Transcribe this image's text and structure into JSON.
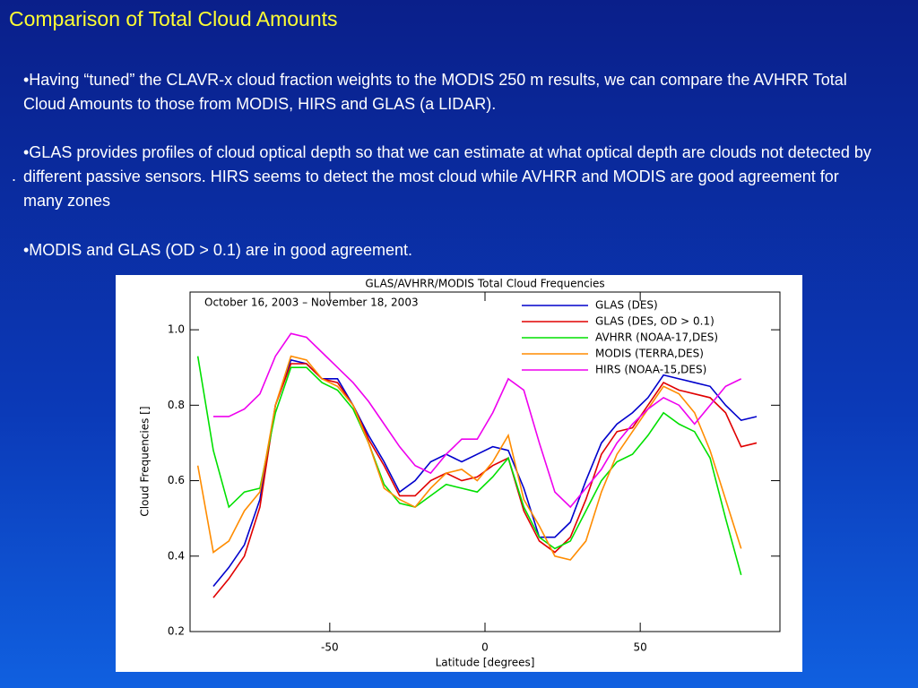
{
  "slide": {
    "title": "Comparison of Total Cloud Amounts",
    "bullets": [
      "•Having “tuned” the CLAVR-x cloud fraction weights to the MODIS 250 m results, we can compare the AVHRR Total Cloud Amounts to those from MODIS, HIRS and GLAS (a LIDAR).",
      "•GLAS provides profiles of cloud optical depth so that we can estimate at what optical depth are clouds not detected by different passive sensors.  HIRS seems to detect the most cloud while AVHRR and MODIS are good agreement for many zones",
      "•MODIS and GLAS (OD > 0.1) are in good agreement."
    ],
    "marker": "."
  },
  "chart_data": {
    "type": "line",
    "title": "GLAS/AVHRR/MODIS Total Cloud Frequencies",
    "annotation": "October 16, 2003 – November 18, 2003",
    "xlabel": "Latitude [degrees]",
    "ylabel": "Cloud Frequencies []",
    "xlim": [
      -95,
      95
    ],
    "ylim": [
      0.2,
      1.1
    ],
    "xticks": [
      -50,
      0,
      50
    ],
    "yticks": [
      0.2,
      0.4,
      0.6,
      0.8,
      {
        "value": 1,
        "label": "1.0"
      }
    ],
    "legend": "upper right",
    "x": [
      -92.5,
      -87.5,
      -82.5,
      -77.5,
      -72.5,
      -67.5,
      -62.5,
      -57.5,
      -52.5,
      -47.5,
      -42.5,
      -37.5,
      -32.5,
      -27.5,
      -22.5,
      -17.5,
      -12.5,
      -7.5,
      -2.5,
      2.5,
      7.5,
      12.5,
      17.5,
      22.5,
      27.5,
      32.5,
      37.5,
      42.5,
      47.5,
      52.5,
      57.5,
      62.5,
      67.5,
      72.5,
      77.5,
      82.5,
      87.5
    ],
    "series": [
      {
        "name": "GLAS (DES)",
        "color": "#0000cc",
        "values": [
          null,
          0.32,
          0.37,
          0.43,
          0.55,
          0.8,
          0.92,
          0.91,
          0.87,
          0.87,
          0.8,
          0.72,
          0.65,
          0.57,
          0.6,
          0.65,
          0.67,
          0.65,
          0.67,
          0.69,
          0.68,
          0.58,
          0.45,
          0.45,
          0.49,
          0.6,
          0.7,
          0.75,
          0.78,
          0.82,
          0.88,
          0.87,
          0.86,
          0.85,
          0.8,
          0.76,
          0.77
        ]
      },
      {
        "name": "GLAS (DES, OD > 0.1)",
        "color": "#e00000",
        "values": [
          null,
          0.29,
          0.34,
          0.4,
          0.53,
          0.8,
          0.91,
          0.91,
          0.87,
          0.86,
          0.8,
          0.71,
          0.64,
          0.56,
          0.56,
          0.6,
          0.62,
          0.6,
          0.61,
          0.64,
          0.66,
          0.52,
          0.44,
          0.41,
          0.45,
          0.55,
          0.67,
          0.73,
          0.74,
          0.8,
          0.86,
          0.84,
          0.83,
          0.82,
          0.78,
          0.69,
          0.7
        ]
      },
      {
        "name": "AVHRR (NOAA-17,DES)",
        "color": "#00e000",
        "values": [
          0.93,
          0.68,
          0.53,
          0.57,
          0.58,
          0.78,
          0.9,
          0.9,
          0.86,
          0.84,
          0.79,
          0.7,
          0.59,
          0.54,
          0.53,
          0.56,
          0.59,
          0.58,
          0.57,
          0.61,
          0.66,
          0.53,
          0.45,
          0.42,
          0.44,
          0.52,
          0.6,
          0.65,
          0.67,
          0.72,
          0.78,
          0.75,
          0.73,
          0.66,
          0.5,
          0.35,
          null
        ]
      },
      {
        "name": "MODIS (TERRA,DES)",
        "color": "#ff8c00",
        "values": [
          0.64,
          0.41,
          0.44,
          0.52,
          0.57,
          0.8,
          0.93,
          0.92,
          0.87,
          0.85,
          0.8,
          0.7,
          0.58,
          0.55,
          0.53,
          0.58,
          0.62,
          0.63,
          0.6,
          0.65,
          0.72,
          0.55,
          0.48,
          0.4,
          0.39,
          0.44,
          0.57,
          0.67,
          0.73,
          0.79,
          0.85,
          0.83,
          0.78,
          0.68,
          0.55,
          0.42,
          null
        ]
      },
      {
        "name": "HIRS (NOAA-15,DES)",
        "color": "#ee00ee",
        "values": [
          null,
          0.77,
          0.77,
          0.79,
          0.83,
          0.93,
          0.99,
          0.98,
          0.94,
          0.9,
          0.86,
          0.81,
          0.75,
          0.69,
          0.64,
          0.62,
          0.67,
          0.71,
          0.71,
          0.78,
          0.87,
          0.84,
          0.7,
          0.57,
          0.53,
          0.58,
          0.63,
          0.7,
          0.75,
          0.79,
          0.82,
          0.8,
          0.75,
          0.8,
          0.85,
          0.87,
          null
        ]
      }
    ]
  }
}
